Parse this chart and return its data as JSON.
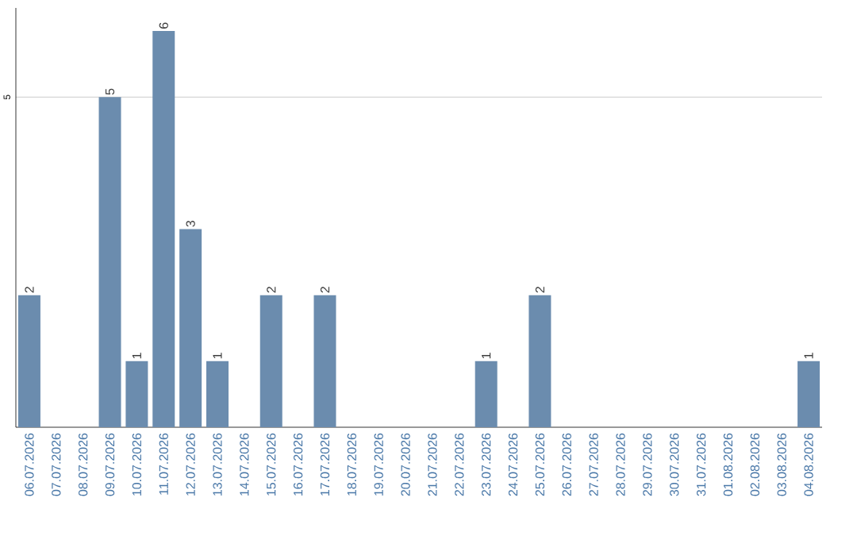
{
  "chart_data": {
    "type": "bar",
    "categories": [
      "06.07.2026",
      "07.07.2026",
      "08.07.2026",
      "09.07.2026",
      "10.07.2026",
      "11.07.2026",
      "12.07.2026",
      "13.07.2026",
      "14.07.2026",
      "15.07.2026",
      "16.07.2026",
      "17.07.2026",
      "18.07.2026",
      "19.07.2026",
      "20.07.2026",
      "21.07.2026",
      "22.07.2026",
      "23.07.2026",
      "24.07.2026",
      "25.07.2026",
      "26.07.2026",
      "27.07.2026",
      "28.07.2026",
      "29.07.2026",
      "30.07.2026",
      "31.07.2026",
      "01.08.2026",
      "02.08.2026",
      "03.08.2026",
      "04.08.2026"
    ],
    "values": [
      2,
      null,
      null,
      5,
      1,
      6,
      3,
      1,
      null,
      2,
      null,
      2,
      null,
      null,
      null,
      null,
      null,
      1,
      null,
      2,
      null,
      null,
      null,
      null,
      null,
      null,
      null,
      null,
      null,
      1
    ],
    "color": "#6b8cae",
    "ylim": [
      0,
      6.35
    ],
    "yticks": [
      5
    ],
    "grid": "y",
    "data_labels": true
  }
}
